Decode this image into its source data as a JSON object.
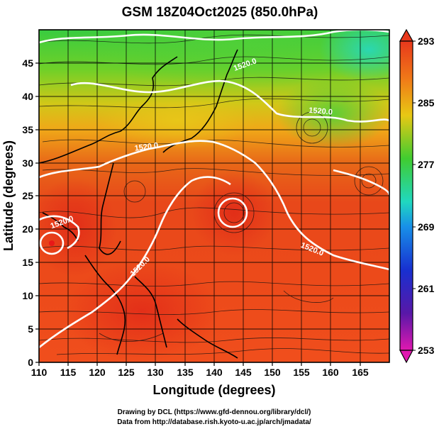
{
  "title": "GSM 18Z04Oct2025 (850.0hPa)",
  "xlabel": "Longitude (degrees)",
  "ylabel": "Latitude  (degrees)",
  "credit": {
    "line1": "Drawing by DCL (https://www.gfd-dennou.org/library/dcl/)",
    "line2": "Data from http://database.rish.kyoto-u.ac.jp/arch/jmadata/"
  },
  "map": {
    "lon_range": [
      110,
      170
    ],
    "lat_range": [
      0,
      50
    ],
    "x_ticks": [
      "110",
      "115",
      "120",
      "125",
      "130",
      "135",
      "140",
      "145",
      "150",
      "155",
      "160",
      "165"
    ],
    "y_ticks": [
      "0",
      "5",
      "10",
      "15",
      "20",
      "25",
      "30",
      "35",
      "40",
      "45"
    ],
    "contour_labels": [
      "1520.0",
      "1520.0",
      "1520.0",
      "1520.0",
      "1520.0",
      "1520.0"
    ],
    "field_range": [
      253,
      293
    ]
  },
  "colorbar": {
    "labels": [
      "293",
      "285",
      "277",
      "269",
      "261",
      "253"
    ]
  },
  "colors": {
    "warm": "#e8391c",
    "orange": "#f08a1c",
    "yellow": "#e8d010",
    "green": "#40cc30",
    "cyan": "#20d8c0",
    "contour": "#ffffff"
  }
}
